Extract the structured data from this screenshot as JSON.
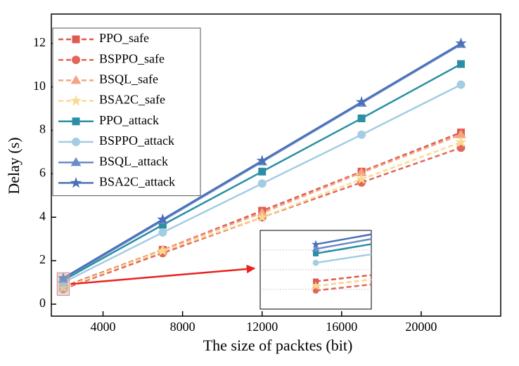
{
  "chart_data": {
    "type": "line",
    "xlabel": "The size of packtes (bit)",
    "ylabel": "Delay (s)",
    "x": [
      2000,
      7000,
      12000,
      17000,
      22000
    ],
    "xlim": [
      1400,
      24000
    ],
    "xticks": [
      4000,
      8000,
      12000,
      16000,
      20000
    ],
    "ylim": [
      -0.55,
      13.35
    ],
    "yticks": [
      0,
      2,
      4,
      6,
      8,
      10,
      12
    ],
    "legend": "upper left",
    "inset": {
      "xlim": [
        1800,
        2200
      ],
      "ylim": [
        0.5,
        1.35
      ]
    },
    "series": [
      {
        "name": "PPO_safe",
        "color": "#e0584e",
        "marker": "square",
        "linestyle": "dashed",
        "values": [
          0.8,
          2.5,
          4.3,
          6.1,
          7.9
        ]
      },
      {
        "name": "BSPPO_safe",
        "color": "#e2665a",
        "marker": "circle",
        "linestyle": "dashed",
        "values": [
          0.7,
          2.35,
          4.0,
          5.6,
          7.2
        ]
      },
      {
        "name": "BSQL_safe",
        "color": "#f4a582",
        "marker": "triangle",
        "linestyle": "dashed",
        "values": [
          0.75,
          2.5,
          4.2,
          6.05,
          7.8
        ]
      },
      {
        "name": "BSA2C_safe",
        "color": "#fbd98f",
        "marker": "star",
        "linestyle": "dashed",
        "values": [
          0.75,
          2.45,
          4.0,
          5.75,
          7.45
        ]
      },
      {
        "name": "PPO_attack",
        "color": "#2a8fa5",
        "marker": "square",
        "linestyle": "solid",
        "values": [
          1.1,
          3.65,
          6.1,
          8.55,
          11.05
        ]
      },
      {
        "name": "BSPPO_attack",
        "color": "#a3cde3",
        "marker": "circle",
        "linestyle": "solid",
        "values": [
          1.0,
          3.3,
          5.55,
          7.8,
          10.1
        ]
      },
      {
        "name": "BSQL_attack",
        "color": "#6a8cc7",
        "marker": "triangle",
        "linestyle": "solid",
        "values": [
          1.15,
          3.85,
          6.55,
          9.25,
          11.95
        ]
      },
      {
        "name": "BSA2C_attack",
        "color": "#4a70b8",
        "marker": "star",
        "linestyle": "solid",
        "values": [
          1.2,
          3.9,
          6.6,
          9.3,
          12.0
        ]
      }
    ]
  }
}
